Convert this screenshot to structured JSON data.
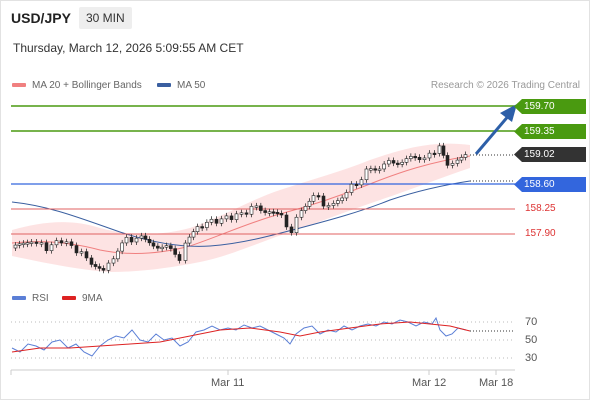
{
  "header": {
    "symbol": "USD/JPY",
    "timeframe": "30 MIN",
    "datetime": "Thursday, March 12, 2026 5:09:55 AM CET",
    "credit": "Research © 2026 Trading Central"
  },
  "price_panel": {
    "legend": [
      {
        "label": "MA 20 + Bollinger Bands",
        "color": "#f08080"
      },
      {
        "label": "MA 50",
        "color": "#3a5fa0"
      }
    ],
    "levels": [
      {
        "label": "159.70",
        "color": "#4a9a10",
        "style": "tag"
      },
      {
        "label": "159.35",
        "color": "#4a9a10",
        "style": "tag"
      },
      {
        "label": "159.02",
        "color": "#333333",
        "style": "tag"
      },
      {
        "label": "158.60",
        "color": "#3366dd",
        "style": "tag"
      },
      {
        "label": "158.25",
        "color": "#dd3333",
        "style": "text"
      },
      {
        "label": "157.90",
        "color": "#dd3333",
        "style": "text"
      }
    ]
  },
  "rsi_panel": {
    "legend": [
      {
        "label": "RSI",
        "color": "#5b7fd6"
      },
      {
        "label": "9MA",
        "color": "#dd2222"
      }
    ],
    "ticks": [
      "70",
      "50",
      "30"
    ]
  },
  "xaxis": {
    "labels": [
      "Mar 11",
      "Mar 12",
      "Mar 18"
    ]
  }
}
